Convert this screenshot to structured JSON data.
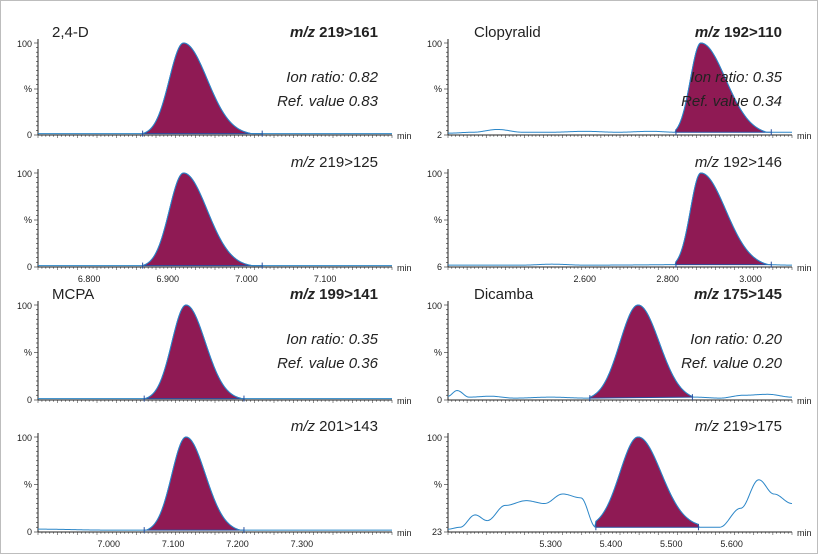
{
  "axis_unit": "min",
  "y_top_label": "100",
  "y_mid_label": "%",
  "chart_data": [
    {
      "type": "line",
      "title": "2,4-D",
      "transition": {
        "prefix": "m/z",
        "value": "219>161",
        "bold": true
      },
      "ion_ratio": "Ion ratio: 0.82",
      "ref_value": "Ref. value 0.83",
      "y_zero_label": "0",
      "xlim": [
        6.735,
        7.185
      ],
      "x_ticks": [],
      "peak": {
        "center": 6.92,
        "sigma_left": 0.018,
        "sigma_right": 0.03,
        "start": 6.868,
        "end": 7.02,
        "height": 100
      },
      "baseline": [
        [
          6.735,
          1.5
        ],
        [
          7.185,
          1.5
        ]
      ],
      "ylim": [
        0,
        100
      ]
    },
    {
      "type": "line",
      "title": "Clopyralid",
      "transition": {
        "prefix": "m/z",
        "value": "192>110",
        "bold": true
      },
      "ion_ratio": "Ion ratio: 0.35",
      "ref_value": "Ref. value 0.34",
      "y_zero_label": "2",
      "xlim": [
        2.27,
        3.1
      ],
      "x_ticks": [],
      "peak": {
        "center": 2.88,
        "sigma_left": 0.025,
        "sigma_right": 0.06,
        "start": 2.82,
        "end": 3.05,
        "height": 100
      },
      "baseline": [
        [
          2.27,
          2
        ],
        [
          2.33,
          3
        ],
        [
          2.39,
          6
        ],
        [
          2.45,
          3
        ],
        [
          2.52,
          3
        ],
        [
          2.6,
          4
        ],
        [
          2.68,
          3
        ],
        [
          2.76,
          4
        ],
        [
          2.82,
          3
        ],
        [
          3.1,
          3
        ]
      ],
      "ylim": [
        0,
        100
      ]
    },
    {
      "type": "line",
      "title": "",
      "transition": {
        "prefix": "m/z",
        "value": "219>125",
        "bold": false
      },
      "ion_ratio": "",
      "ref_value": "",
      "y_zero_label": "0",
      "xlim": [
        6.735,
        7.185
      ],
      "x_ticks": [
        "6.800",
        "6.900",
        "7.000",
        "7.100"
      ],
      "peak": {
        "center": 6.92,
        "sigma_left": 0.018,
        "sigma_right": 0.03,
        "start": 6.868,
        "end": 7.02,
        "height": 100
      },
      "baseline": [
        [
          6.735,
          1.5
        ],
        [
          7.185,
          1.5
        ]
      ],
      "ylim": [
        0,
        100
      ]
    },
    {
      "type": "line",
      "title": "",
      "transition": {
        "prefix": "m/z",
        "value": "192>146",
        "bold": false
      },
      "ion_ratio": "",
      "ref_value": "",
      "y_zero_label": "6",
      "xlim": [
        2.27,
        3.1
      ],
      "x_ticks": [
        "2.600",
        "2.800",
        "3.000"
      ],
      "peak": {
        "center": 2.88,
        "sigma_left": 0.025,
        "sigma_right": 0.06,
        "start": 2.82,
        "end": 3.05,
        "height": 100
      },
      "baseline": [
        [
          2.27,
          2
        ],
        [
          2.45,
          2
        ],
        [
          2.52,
          3
        ],
        [
          2.6,
          2
        ],
        [
          3.0,
          3
        ],
        [
          3.1,
          2
        ]
      ],
      "ylim": [
        0,
        100
      ]
    },
    {
      "type": "line",
      "title": "MCPA",
      "transition": {
        "prefix": "m/z",
        "value": "199>141",
        "bold": true
      },
      "ion_ratio": "Ion ratio: 0.35",
      "ref_value": "Ref. value 0.36",
      "y_zero_label": "0",
      "xlim": [
        6.89,
        7.44
      ],
      "x_ticks": [],
      "peak": {
        "center": 7.12,
        "sigma_left": 0.022,
        "sigma_right": 0.03,
        "start": 7.055,
        "end": 7.21,
        "height": 100
      },
      "baseline": [
        [
          6.89,
          1.5
        ],
        [
          7.44,
          1.5
        ]
      ],
      "ylim": [
        0,
        100
      ]
    },
    {
      "type": "line",
      "title": "Dicamba",
      "transition": {
        "prefix": "m/z",
        "value": "175>145",
        "bold": true
      },
      "ion_ratio": "Ion ratio: 0.20",
      "ref_value": "Ref. value 0.20",
      "y_zero_label": "0",
      "xlim": [
        5.13,
        5.7
      ],
      "x_ticks": [],
      "peak": {
        "center": 5.445,
        "sigma_left": 0.03,
        "sigma_right": 0.035,
        "start": 5.365,
        "end": 5.535,
        "height": 100
      },
      "baseline": [
        [
          5.13,
          4
        ],
        [
          5.145,
          10
        ],
        [
          5.165,
          3
        ],
        [
          5.2,
          4
        ],
        [
          5.24,
          2
        ],
        [
          5.3,
          3
        ],
        [
          5.36,
          2
        ],
        [
          5.54,
          3
        ],
        [
          5.58,
          2
        ],
        [
          5.62,
          5
        ],
        [
          5.66,
          6
        ],
        [
          5.7,
          3
        ]
      ],
      "ylim": [
        0,
        100
      ]
    },
    {
      "type": "line",
      "title": "",
      "transition": {
        "prefix": "m/z",
        "value": "201>143",
        "bold": false
      },
      "ion_ratio": "",
      "ref_value": "",
      "y_zero_label": "0",
      "xlim": [
        6.89,
        7.44
      ],
      "x_ticks": [
        "7.000",
        "7.100",
        "7.200",
        "7.300"
      ],
      "peak": {
        "center": 7.12,
        "sigma_left": 0.022,
        "sigma_right": 0.03,
        "start": 7.055,
        "end": 7.21,
        "height": 100
      },
      "baseline": [
        [
          6.89,
          3
        ],
        [
          7.0,
          2
        ],
        [
          7.12,
          2
        ],
        [
          7.25,
          2
        ],
        [
          7.44,
          2
        ]
      ],
      "ylim": [
        0,
        100
      ]
    },
    {
      "type": "line",
      "title": "",
      "transition": {
        "prefix": "m/z",
        "value": "219>175",
        "bold": false
      },
      "ion_ratio": "",
      "ref_value": "",
      "y_zero_label": "23",
      "xlim": [
        5.13,
        5.7
      ],
      "x_ticks": [
        "5.300",
        "5.400",
        "5.500",
        "5.600"
      ],
      "peak": {
        "center": 5.445,
        "sigma_left": 0.03,
        "sigma_right": 0.038,
        "start": 5.375,
        "end": 5.545,
        "height": 100,
        "base": 5
      },
      "baseline": [
        [
          5.13,
          3
        ],
        [
          5.15,
          5
        ],
        [
          5.175,
          18
        ],
        [
          5.195,
          12
        ],
        [
          5.225,
          28
        ],
        [
          5.26,
          33
        ],
        [
          5.29,
          30
        ],
        [
          5.32,
          40
        ],
        [
          5.35,
          36
        ],
        [
          5.375,
          5
        ],
        [
          5.545,
          5
        ],
        [
          5.58,
          5
        ],
        [
          5.615,
          25
        ],
        [
          5.645,
          55
        ],
        [
          5.67,
          40
        ],
        [
          5.7,
          30
        ]
      ],
      "ylim": [
        0,
        100
      ]
    }
  ]
}
